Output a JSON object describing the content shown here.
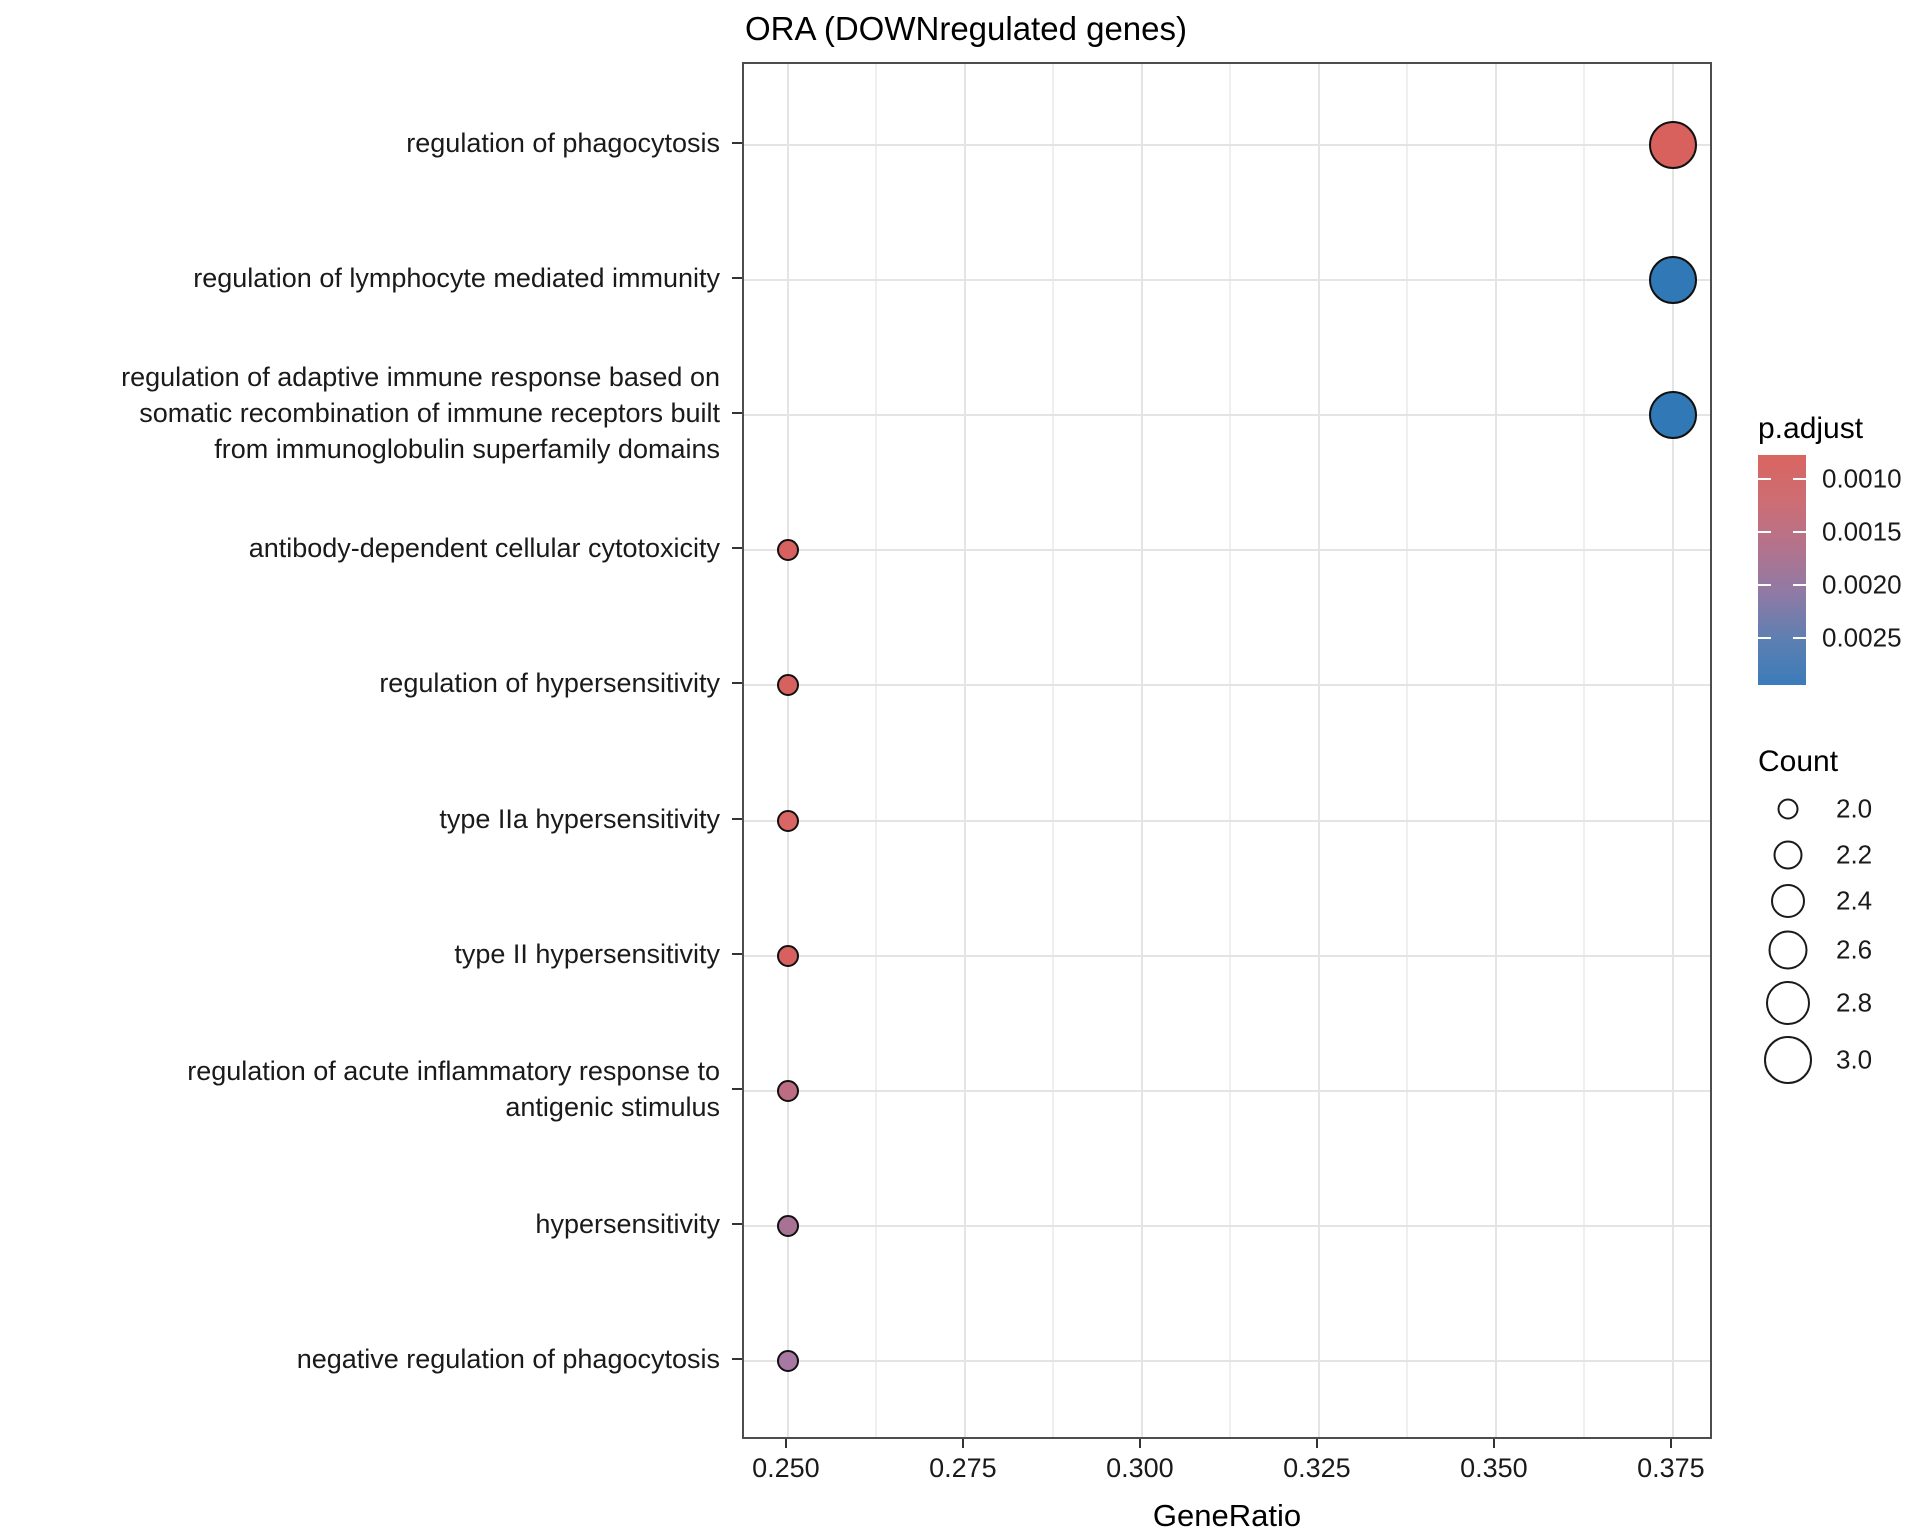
{
  "title": "ORA (DOWNregulated genes)",
  "axes": {
    "x": {
      "label": "GeneRatio",
      "tick_labels": [
        "0.250",
        "0.275",
        "0.300",
        "0.325",
        "0.350",
        "0.375"
      ],
      "tick_values": [
        0.25,
        0.275,
        0.3,
        0.325,
        0.35,
        0.375
      ],
      "minor_tick_values": [
        0.2625,
        0.2875,
        0.3125,
        0.3375,
        0.3625
      ],
      "range": [
        0.2438,
        0.3808
      ]
    },
    "y": {
      "categories": [
        "regulation of phagocytosis",
        "regulation of lymphocyte mediated immunity",
        "regulation of adaptive immune response based on somatic recombination of immune receptors built from immunoglobulin superfamily domains",
        "antibody-dependent cellular cytotoxicity",
        "regulation of hypersensitivity",
        "type IIa hypersensitivity",
        "type II hypersensitivity",
        "regulation of acute inflammatory response to antigenic stimulus",
        "hypersensitivity",
        "negative regulation of phagocytosis"
      ]
    }
  },
  "chart_data": {
    "type": "scatter",
    "title": "ORA (DOWNregulated genes)",
    "xlabel": "GeneRatio",
    "ylabel": "",
    "xlim": [
      0.2438,
      0.3808
    ],
    "grid": true,
    "points": [
      {
        "label_lines": [
          "regulation of phagocytosis"
        ],
        "gene_ratio": 0.375,
        "count": 3,
        "color": "#d8605d"
      },
      {
        "label_lines": [
          "regulation of lymphocyte mediated immunity"
        ],
        "gene_ratio": 0.375,
        "count": 3,
        "color": "#3179b6"
      },
      {
        "label_lines": [
          "regulation of adaptive immune response based on",
          "somatic recombination of immune receptors built",
          "from immunoglobulin superfamily domains"
        ],
        "gene_ratio": 0.375,
        "count": 3,
        "color": "#3179b6"
      },
      {
        "label_lines": [
          "antibody-dependent cellular cytotoxicity"
        ],
        "gene_ratio": 0.25,
        "count": 2,
        "color": "#d6615f"
      },
      {
        "label_lines": [
          "regulation of hypersensitivity"
        ],
        "gene_ratio": 0.25,
        "count": 2,
        "color": "#d6615f"
      },
      {
        "label_lines": [
          "type IIa hypersensitivity"
        ],
        "gene_ratio": 0.25,
        "count": 2,
        "color": "#d96664"
      },
      {
        "label_lines": [
          "type II hypersensitivity"
        ],
        "gene_ratio": 0.25,
        "count": 2,
        "color": "#d6615f"
      },
      {
        "label_lines": [
          "regulation of acute inflammatory response to",
          "antigenic stimulus"
        ],
        "gene_ratio": 0.25,
        "count": 2,
        "color": "#bd6d81"
      },
      {
        "label_lines": [
          "hypersensitivity"
        ],
        "gene_ratio": 0.25,
        "count": 2,
        "color": "#a87295"
      },
      {
        "label_lines": [
          "negative regulation of phagocytosis"
        ],
        "gene_ratio": 0.25,
        "count": 2,
        "color": "#a678a2"
      }
    ]
  },
  "legend": {
    "p_adjust": {
      "title": "p.adjust",
      "tick_labels": [
        "0.0010",
        "0.0015",
        "0.0020",
        "0.0025"
      ],
      "gradient_stops": [
        "#d96560",
        "#cd6d74",
        "#b4738c",
        "#8f7aa5",
        "#5e7fb1",
        "#3b7cba"
      ]
    },
    "count": {
      "title": "Count",
      "items": [
        "2.0",
        "2.2",
        "2.4",
        "2.6",
        "2.8",
        "3.0"
      ]
    }
  }
}
